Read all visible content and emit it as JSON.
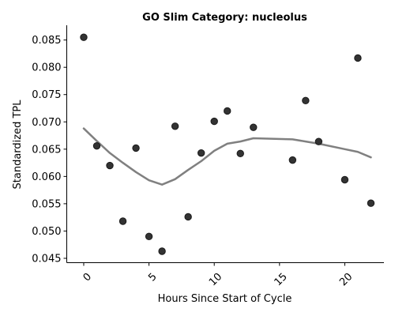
{
  "chart_data": {
    "type": "scatter",
    "title": "GO Slim Category: nucleolus",
    "xlabel": "Hours Since Start of Cycle",
    "ylabel": "Standardized TPL",
    "xlim": [
      -1.3,
      23.0
    ],
    "ylim": [
      0.0442,
      0.0877
    ],
    "xticks": [
      0,
      5,
      10,
      15,
      20
    ],
    "yticks": [
      0.045,
      0.05,
      0.055,
      0.06,
      0.065,
      0.07,
      0.075,
      0.08,
      0.085
    ],
    "ytick_labels": [
      "0.045",
      "0.050",
      "0.055",
      "0.060",
      "0.065",
      "0.070",
      "0.075",
      "0.080",
      "0.085"
    ],
    "grid": false,
    "series": [
      {
        "type": "scatter",
        "color": "#333333",
        "points": [
          {
            "x": 0,
            "y": 0.0855
          },
          {
            "x": 1,
            "y": 0.0656
          },
          {
            "x": 2,
            "y": 0.062
          },
          {
            "x": 3,
            "y": 0.0518
          },
          {
            "x": 4,
            "y": 0.0652
          },
          {
            "x": 5,
            "y": 0.049
          },
          {
            "x": 6,
            "y": 0.0463
          },
          {
            "x": 7,
            "y": 0.0692
          },
          {
            "x": 8,
            "y": 0.0526
          },
          {
            "x": 9,
            "y": 0.0643
          },
          {
            "x": 10,
            "y": 0.0701
          },
          {
            "x": 11,
            "y": 0.072
          },
          {
            "x": 12,
            "y": 0.0642
          },
          {
            "x": 13,
            "y": 0.069
          },
          {
            "x": 16,
            "y": 0.063
          },
          {
            "x": 17,
            "y": 0.0739
          },
          {
            "x": 18,
            "y": 0.0664
          },
          {
            "x": 20,
            "y": 0.0594
          },
          {
            "x": 21,
            "y": 0.0817
          },
          {
            "x": 22,
            "y": 0.0551
          }
        ]
      },
      {
        "type": "line",
        "color": "#808080",
        "points": [
          {
            "x": 0,
            "y": 0.0688
          },
          {
            "x": 1,
            "y": 0.0665
          },
          {
            "x": 2,
            "y": 0.0643
          },
          {
            "x": 3,
            "y": 0.0625
          },
          {
            "x": 4,
            "y": 0.0608
          },
          {
            "x": 5,
            "y": 0.0593
          },
          {
            "x": 6,
            "y": 0.0585
          },
          {
            "x": 7,
            "y": 0.0595
          },
          {
            "x": 8,
            "y": 0.0612
          },
          {
            "x": 9,
            "y": 0.0628
          },
          {
            "x": 10,
            "y": 0.0647
          },
          {
            "x": 11,
            "y": 0.066
          },
          {
            "x": 12,
            "y": 0.0664
          },
          {
            "x": 13,
            "y": 0.067
          },
          {
            "x": 16,
            "y": 0.0668
          },
          {
            "x": 17,
            "y": 0.0664
          },
          {
            "x": 18,
            "y": 0.066
          },
          {
            "x": 20,
            "y": 0.065
          },
          {
            "x": 21,
            "y": 0.0645
          },
          {
            "x": 22,
            "y": 0.0635
          }
        ]
      }
    ]
  }
}
